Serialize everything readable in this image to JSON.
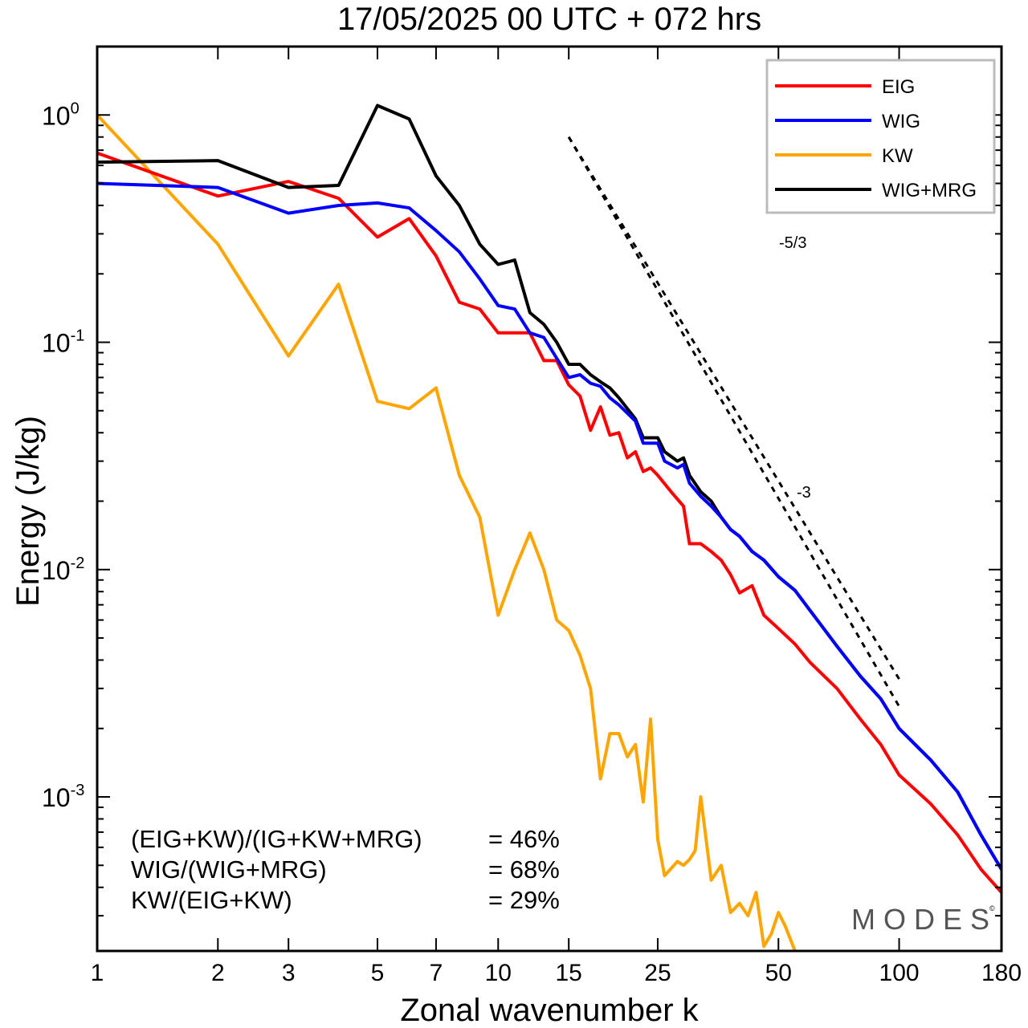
{
  "chart_data": {
    "type": "line",
    "title": "17/05/2025  00 UTC  + 072 hrs",
    "xlabel": "Zonal wavenumber k",
    "ylabel": "Energy (J/kg)",
    "x_scale": "log",
    "y_scale": "log",
    "xlim": [
      1,
      180
    ],
    "ylim": [
      0.00021,
      2.0
    ],
    "x_ticks": [
      1,
      2,
      3,
      5,
      7,
      10,
      15,
      25,
      50,
      100,
      180
    ],
    "y_ticks": [
      {
        "value": 1,
        "label": "10",
        "exp": "0"
      },
      {
        "value": 0.1,
        "label": "10",
        "exp": "-1"
      },
      {
        "value": 0.01,
        "label": "10",
        "exp": "-2"
      },
      {
        "value": 0.001,
        "label": "10",
        "exp": "-3"
      }
    ],
    "legend_position": "top-right",
    "series": [
      {
        "name": "EIG",
        "color": "#ff0000",
        "points": [
          [
            1,
            0.68
          ],
          [
            2,
            0.44
          ],
          [
            3,
            0.51
          ],
          [
            4,
            0.43
          ],
          [
            5,
            0.29
          ],
          [
            6,
            0.35
          ],
          [
            7,
            0.24
          ],
          [
            8,
            0.15
          ],
          [
            9,
            0.14
          ],
          [
            10,
            0.11
          ],
          [
            12,
            0.11
          ],
          [
            13,
            0.083
          ],
          [
            14,
            0.083
          ],
          [
            15,
            0.065
          ],
          [
            16,
            0.058
          ],
          [
            17,
            0.041
          ],
          [
            18,
            0.052
          ],
          [
            19,
            0.039
          ],
          [
            20,
            0.04
          ],
          [
            21,
            0.031
          ],
          [
            22,
            0.033
          ],
          [
            23,
            0.027
          ],
          [
            24,
            0.028
          ],
          [
            25,
            0.026
          ],
          [
            27,
            0.022
          ],
          [
            29,
            0.019
          ],
          [
            30,
            0.013
          ],
          [
            32,
            0.013
          ],
          [
            34,
            0.012
          ],
          [
            36,
            0.011
          ],
          [
            38,
            0.0095
          ],
          [
            40,
            0.0079
          ],
          [
            43,
            0.0085
          ],
          [
            46,
            0.0063
          ],
          [
            50,
            0.0055
          ],
          [
            55,
            0.0047
          ],
          [
            60,
            0.0039
          ],
          [
            70,
            0.003
          ],
          [
            80,
            0.0022
          ],
          [
            90,
            0.0017
          ],
          [
            100,
            0.00125
          ],
          [
            120,
            0.00093
          ],
          [
            140,
            0.00068
          ],
          [
            160,
            0.00048
          ],
          [
            180,
            0.00038
          ]
        ]
      },
      {
        "name": "WIG",
        "color": "#0000ff",
        "points": [
          [
            1,
            0.5
          ],
          [
            2,
            0.48
          ],
          [
            3,
            0.37
          ],
          [
            4,
            0.4
          ],
          [
            5,
            0.41
          ],
          [
            6,
            0.39
          ],
          [
            7,
            0.31
          ],
          [
            8,
            0.25
          ],
          [
            9,
            0.19
          ],
          [
            10,
            0.145
          ],
          [
            11,
            0.14
          ],
          [
            12,
            0.11
          ],
          [
            13,
            0.105
          ],
          [
            14,
            0.085
          ],
          [
            15,
            0.07
          ],
          [
            16,
            0.072
          ],
          [
            17,
            0.066
          ],
          [
            18,
            0.064
          ],
          [
            19,
            0.057
          ],
          [
            20,
            0.053
          ],
          [
            22,
            0.045
          ],
          [
            23,
            0.036
          ],
          [
            25,
            0.036
          ],
          [
            26,
            0.03
          ],
          [
            28,
            0.028
          ],
          [
            29,
            0.029
          ],
          [
            30,
            0.024
          ],
          [
            32,
            0.021
          ],
          [
            34,
            0.019
          ],
          [
            36,
            0.017
          ],
          [
            38,
            0.015
          ],
          [
            40,
            0.014
          ],
          [
            43,
            0.012
          ],
          [
            46,
            0.011
          ],
          [
            50,
            0.0093
          ],
          [
            55,
            0.0081
          ],
          [
            60,
            0.0066
          ],
          [
            70,
            0.0046
          ],
          [
            80,
            0.0034
          ],
          [
            90,
            0.0027
          ],
          [
            100,
            0.002
          ],
          [
            120,
            0.00145
          ],
          [
            140,
            0.00105
          ],
          [
            160,
            0.00068
          ],
          [
            180,
            0.00048
          ]
        ]
      },
      {
        "name": "KW",
        "color": "#ffa500",
        "points": [
          [
            1,
            1.0
          ],
          [
            2,
            0.27
          ],
          [
            3,
            0.087
          ],
          [
            4,
            0.18
          ],
          [
            5,
            0.055
          ],
          [
            6,
            0.051
          ],
          [
            7,
            0.063
          ],
          [
            8,
            0.026
          ],
          [
            9,
            0.017
          ],
          [
            10,
            0.0063
          ],
          [
            11,
            0.01
          ],
          [
            12,
            0.0145
          ],
          [
            13,
            0.01
          ],
          [
            14,
            0.006
          ],
          [
            15,
            0.0054
          ],
          [
            16,
            0.0042
          ],
          [
            17,
            0.003
          ],
          [
            18,
            0.0012
          ],
          [
            19,
            0.0019
          ],
          [
            20,
            0.0019
          ],
          [
            21,
            0.0015
          ],
          [
            22,
            0.0017
          ],
          [
            23,
            0.00095
          ],
          [
            24,
            0.0022
          ],
          [
            25,
            0.00065
          ],
          [
            26,
            0.00045
          ],
          [
            28,
            0.00052
          ],
          [
            29,
            0.0005
          ],
          [
            30,
            0.00053
          ],
          [
            31,
            0.00058
          ],
          [
            32,
            0.001
          ],
          [
            34,
            0.00043
          ],
          [
            36,
            0.0005
          ],
          [
            38,
            0.00031
          ],
          [
            40,
            0.00034
          ],
          [
            42,
            0.0003
          ],
          [
            44,
            0.00038
          ],
          [
            46,
            0.00022
          ],
          [
            48,
            0.00025
          ],
          [
            50,
            0.00031
          ],
          [
            52,
            0.00027
          ],
          [
            55,
            0.00021
          ]
        ]
      },
      {
        "name": "WIG+MRG",
        "color": "#000000",
        "points": [
          [
            1,
            0.62
          ],
          [
            2,
            0.63
          ],
          [
            3,
            0.48
          ],
          [
            4,
            0.49
          ],
          [
            5,
            1.1
          ],
          [
            6,
            0.96
          ],
          [
            7,
            0.54
          ],
          [
            8,
            0.4
          ],
          [
            9,
            0.27
          ],
          [
            10,
            0.22
          ],
          [
            11,
            0.23
          ],
          [
            12,
            0.135
          ],
          [
            13,
            0.12
          ],
          [
            14,
            0.1
          ],
          [
            15,
            0.08
          ],
          [
            16,
            0.08
          ],
          [
            17,
            0.072
          ],
          [
            18,
            0.067
          ],
          [
            19,
            0.063
          ],
          [
            20,
            0.057
          ],
          [
            22,
            0.046
          ],
          [
            23,
            0.038
          ],
          [
            25,
            0.038
          ],
          [
            26,
            0.033
          ],
          [
            28,
            0.03
          ],
          [
            29,
            0.031
          ],
          [
            30,
            0.026
          ],
          [
            32,
            0.022
          ],
          [
            34,
            0.02
          ],
          [
            36,
            0.017
          ],
          [
            38,
            0.015
          ],
          [
            40,
            0.014
          ],
          [
            43,
            0.012
          ],
          [
            46,
            0.011
          ],
          [
            50,
            0.0093
          ],
          [
            55,
            0.0081
          ],
          [
            60,
            0.0066
          ],
          [
            70,
            0.0046
          ],
          [
            80,
            0.0034
          ],
          [
            90,
            0.0027
          ],
          [
            100,
            0.002
          ],
          [
            120,
            0.00145
          ],
          [
            140,
            0.00105
          ],
          [
            160,
            0.00068
          ],
          [
            180,
            0.00048
          ]
        ]
      }
    ],
    "reference_lines": [
      {
        "label": "-5/3",
        "slope": -1.6667,
        "from": [
          15,
          0.8
        ],
        "to": [
          100,
          0.0033
        ]
      },
      {
        "label": "-3",
        "slope": -3,
        "from": [
          15,
          0.8
        ],
        "to": [
          100,
          0.0025
        ]
      }
    ],
    "annotations": [
      {
        "text": "(EIG+KW)/(IG+KW+MRG)",
        "value": "= 46%"
      },
      {
        "text": "WIG/(WIG+MRG)",
        "value": "= 68%"
      },
      {
        "text": "KW/(EIG+KW)",
        "value": "= 29%"
      }
    ],
    "watermark": "MODES"
  }
}
